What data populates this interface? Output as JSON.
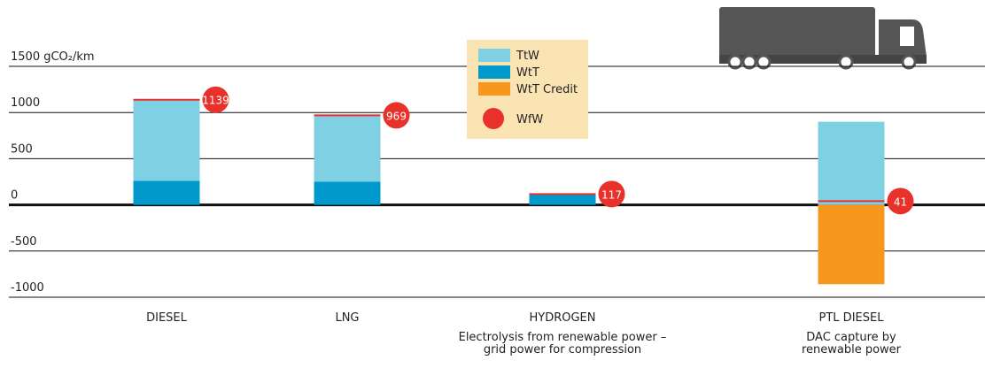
{
  "chart_data": {
    "type": "bar",
    "stacked": true,
    "categories": [
      "DIESEL",
      "LNG",
      "HYDROGEN",
      "PTL DIESEL"
    ],
    "category_notes": [
      null,
      null,
      [
        "Electrolysis from renewable power –",
        "grid power for compression"
      ],
      [
        "DAC capture by",
        "renewable power"
      ]
    ],
    "series": [
      {
        "name": "TtW",
        "color": "#7fd0e3",
        "values": [
          879,
          719,
          0,
          900
        ]
      },
      {
        "name": "WtT",
        "color": "#0099cc",
        "values": [
          260,
          250,
          117,
          0
        ]
      },
      {
        "name": "WtT Credit",
        "color": "#f7971e",
        "values": [
          0,
          0,
          0,
          -859
        ]
      },
      {
        "name": "WfW",
        "color": "#e8312b",
        "type": "marker",
        "values": [
          1139,
          969,
          117,
          41
        ]
      }
    ],
    "ylim": [
      -1000,
      1500
    ],
    "yticks": [
      {
        "value": 1500,
        "label": "1500 gCO₂/km"
      },
      1000,
      500,
      0,
      -500,
      -1000
    ],
    "grid": true
  }
}
